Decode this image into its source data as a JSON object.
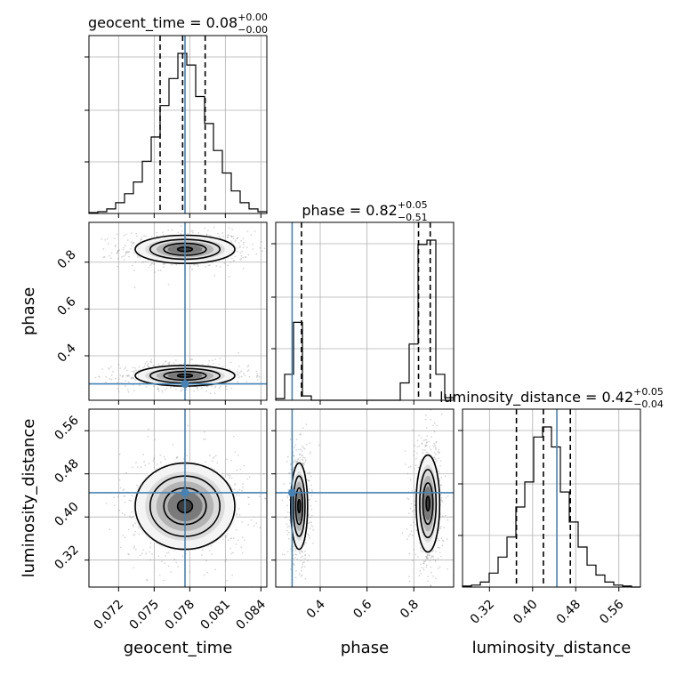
{
  "chart_data": {
    "type": "corner",
    "parameters": [
      "geocent_time",
      "phase",
      "luminosity_distance"
    ],
    "titles": {
      "geocent_time": {
        "name": "geocent_time",
        "median": "0.08",
        "plus": "+0.00",
        "minus": "−0.00"
      },
      "phase": {
        "name": "phase",
        "median": "0.82",
        "plus": "+0.05",
        "minus": "−0.51"
      },
      "luminosity_distance": {
        "name": "luminosity_distance",
        "median": "0.42",
        "plus": "+0.05",
        "minus": "−0.04"
      }
    },
    "truths": {
      "geocent_time": 0.0776,
      "phase": 0.28,
      "luminosity_distance": 0.445
    },
    "ranges": {
      "geocent_time": [
        0.0695,
        0.0845
      ],
      "phase": [
        0.21,
        0.97
      ],
      "luminosity_distance": [
        0.27,
        0.6
      ]
    },
    "ticks": {
      "geocent_time": [
        "0.072",
        "0.075",
        "0.078",
        "0.081",
        "0.084"
      ],
      "phase": [
        "0.4",
        "0.6",
        "0.8"
      ],
      "luminosity_distance": [
        "0.32",
        "0.40",
        "0.48",
        "0.56"
      ]
    },
    "quantiles": {
      "geocent_time": [
        0.0755,
        0.0774,
        0.0793
      ],
      "phase": [
        0.32,
        0.82,
        0.87
      ],
      "luminosity_distance": [
        0.37,
        0.42,
        0.47
      ]
    },
    "histograms": {
      "geocent_time": {
        "bins": [
          0.0695,
          0.07025,
          0.071,
          0.07175,
          0.0725,
          0.07325,
          0.074,
          0.07475,
          0.0755,
          0.07625,
          0.077,
          0.07775,
          0.0785,
          0.07925,
          0.08,
          0.08075,
          0.0815,
          0.08225,
          0.083,
          0.08375,
          0.0845
        ],
        "counts": [
          1,
          2,
          5,
          12,
          22,
          35,
          58,
          85,
          120,
          150,
          178,
          165,
          130,
          100,
          70,
          45,
          25,
          12,
          5,
          2
        ]
      },
      "phase": {
        "bins": [
          0.21,
          0.248,
          0.286,
          0.324,
          0.362,
          0.4,
          0.438,
          0.476,
          0.514,
          0.552,
          0.59,
          0.628,
          0.666,
          0.704,
          0.742,
          0.78,
          0.818,
          0.856,
          0.894,
          0.932,
          0.97
        ],
        "counts": [
          2,
          30,
          90,
          5,
          0,
          0,
          0,
          0,
          0,
          0,
          0,
          0,
          0,
          0,
          20,
          65,
          180,
          185,
          30,
          3
        ]
      },
      "luminosity_distance": {
        "bins": [
          0.27,
          0.2865,
          0.303,
          0.3195,
          0.336,
          0.3525,
          0.369,
          0.3855,
          0.402,
          0.4185,
          0.435,
          0.4515,
          0.468,
          0.4845,
          0.501,
          0.5175,
          0.534,
          0.5505,
          0.567,
          0.5835,
          0.6
        ],
        "counts": [
          1,
          2,
          5,
          14,
          30,
          50,
          80,
          105,
          150,
          160,
          140,
          95,
          65,
          40,
          22,
          12,
          5,
          2,
          1,
          0
        ]
      }
    },
    "contours_2d": [
      {
        "x": "geocent_time",
        "y": "phase",
        "modes": [
          {
            "cx": 0.0776,
            "cy": 0.855,
            "sx": 0.0021,
            "sy": 0.03
          },
          {
            "cx": 0.0776,
            "cy": 0.315,
            "sx": 0.0021,
            "sy": 0.022
          }
        ]
      },
      {
        "x": "geocent_time",
        "y": "luminosity_distance",
        "modes": [
          {
            "cx": 0.0776,
            "cy": 0.42,
            "sx": 0.0021,
            "sy": 0.04
          }
        ]
      },
      {
        "x": "phase",
        "y": "luminosity_distance",
        "modes": [
          {
            "cx": 0.31,
            "cy": 0.42,
            "sx": 0.018,
            "sy": 0.04
          },
          {
            "cx": 0.86,
            "cy": 0.425,
            "sx": 0.025,
            "sy": 0.045
          }
        ]
      }
    ],
    "grid": true,
    "truth_color": "#4682b4",
    "hist_color": "#000000",
    "scatter_color": "#8c8c8c"
  }
}
